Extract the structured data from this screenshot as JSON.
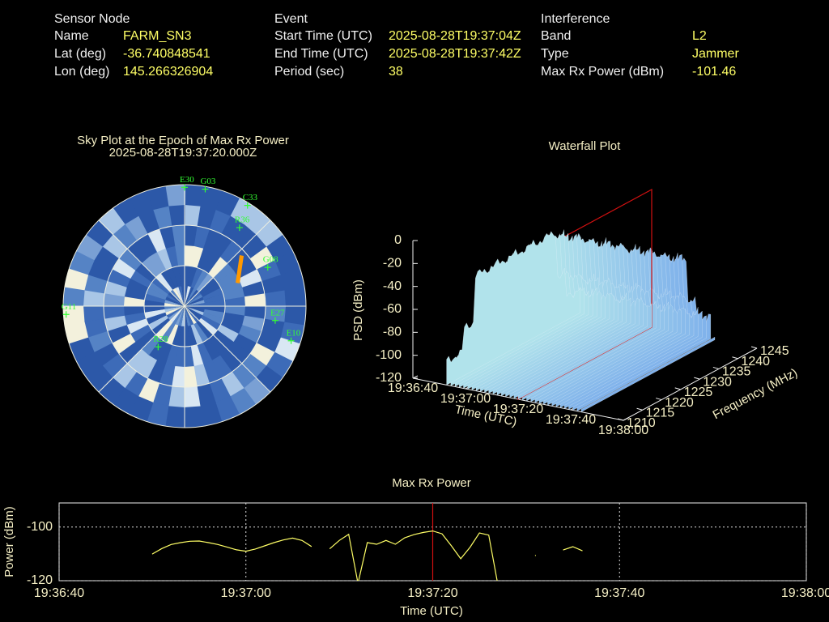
{
  "header": {
    "columns": [
      {
        "title": "Sensor Node",
        "rows": [
          [
            "Name",
            "FARM_SN3"
          ],
          [
            "Lat (deg)",
            "-36.740848541"
          ],
          [
            "Lon (deg)",
            "145.266326904"
          ]
        ]
      },
      {
        "title": "Event",
        "rows": [
          [
            "Start Time (UTC)",
            "2025-08-28T19:37:04Z"
          ],
          [
            "End Time (UTC)",
            "2025-08-28T19:37:42Z"
          ],
          [
            "Period (sec)",
            "38"
          ]
        ]
      },
      {
        "title": "Interference",
        "rows": [
          [
            "Band",
            "L2"
          ],
          [
            "Type",
            "Jammer"
          ],
          [
            "Max Rx Power (dBm)",
            "-101.46"
          ]
        ]
      }
    ]
  },
  "sky_plot": {
    "title": "Sky Plot at the Epoch of Max Rx Power",
    "subtitle": "2025-08-28T19:37:20.000Z",
    "satellites": [
      {
        "name": "E30",
        "az": 0,
        "el": 2
      },
      {
        "name": "G03",
        "az": 10,
        "el": 2
      },
      {
        "name": "C33",
        "az": 32,
        "el": 2
      },
      {
        "name": "R36",
        "az": 35,
        "el": 19
      },
      {
        "name": "G08",
        "az": 65,
        "el": 22
      },
      {
        "name": "E27",
        "az": 99,
        "el": 22
      },
      {
        "name": "E10",
        "az": 108,
        "el": 7
      },
      {
        "name": "R28",
        "az": 213,
        "el": 54
      },
      {
        "name": "G11",
        "az": 266,
        "el": 2
      }
    ]
  },
  "waterfall": {
    "title": "Waterfall Plot",
    "zlabel": "PSD (dBm)",
    "tlabel": "Time (UTC)",
    "flabel": "Frequency (MHz)",
    "zlim": [
      -120,
      0
    ],
    "zticks": [
      0,
      -20,
      -40,
      -60,
      -80,
      -100,
      -120
    ],
    "tlim": [
      "19:36:40",
      "19:38:00"
    ],
    "tticks": [
      "19:36:40",
      "19:37:00",
      "19:37:20",
      "19:37:40",
      "19:38:00"
    ],
    "flim": [
      1210,
      1245
    ],
    "fticks": [
      1210,
      1215,
      1220,
      1225,
      1230,
      1235,
      1240,
      1245
    ],
    "marker_time": "19:37:20"
  },
  "chart_data": {
    "type": "line",
    "title": "Max Rx Power",
    "xlabel": "Time (UTC)",
    "ylabel": "Power (dBm)",
    "x": [
      "19:36:50",
      "19:36:51",
      "19:36:52",
      "19:36:53",
      "19:36:54",
      "19:36:55",
      "19:36:56",
      "19:36:57",
      "19:36:58",
      "19:36:59",
      "19:37:00",
      "19:37:01",
      "19:37:02",
      "19:37:03",
      "19:37:04",
      "19:37:05",
      "19:37:06",
      "19:37:07",
      "19:37:08",
      "19:37:09",
      "19:37:10",
      "19:37:11",
      "19:37:12",
      "19:37:13",
      "19:37:14",
      "19:37:15",
      "19:37:16",
      "19:37:17",
      "19:37:18",
      "19:37:19",
      "19:37:20",
      "19:37:21",
      "19:37:22",
      "19:37:23",
      "19:37:24",
      "19:37:25",
      "19:37:26",
      "19:37:27",
      "19:37:28",
      "19:37:29",
      "19:37:30",
      "19:37:31",
      "19:37:32",
      "19:37:33",
      "19:37:34",
      "19:37:35",
      "19:37:36"
    ],
    "values": [
      -110,
      -108,
      -106.5,
      -105.8,
      -105.3,
      -105.2,
      -105.8,
      -106.5,
      -107.5,
      -108.5,
      -109,
      -108.2,
      -107,
      -105.8,
      -104.8,
      -104.1,
      -105,
      -107.2,
      null,
      -108,
      -105,
      -102.7,
      -121,
      -105.8,
      -106.4,
      -105,
      -106.4,
      -104,
      -102.8,
      -102,
      -101.46,
      -102.5,
      -107,
      -111.8,
      -107.5,
      -102.2,
      -103,
      -122,
      null,
      null,
      null,
      -110.6,
      null,
      null,
      -108.5,
      -107.3,
      -108.8
    ],
    "color": "#ffff66",
    "xlim": [
      "19:36:40",
      "19:38:00"
    ],
    "xticks": [
      "19:36:40",
      "19:37:00",
      "19:37:20",
      "19:37:40",
      "19:38:00"
    ],
    "ylim": [
      -120,
      -91
    ],
    "yticks": [
      -120,
      -100
    ],
    "grid": true,
    "marker_x": "19:37:20",
    "marker_color": "#d01010"
  }
}
